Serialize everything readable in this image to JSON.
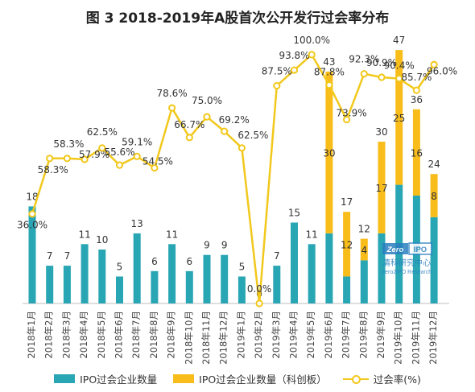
{
  "chart_data": {
    "type": "bar",
    "title": "图 3 2018-2019年A股首次公开发行过会率分布",
    "categories": [
      "2018年1月",
      "2018年2月",
      "2018年3月",
      "2018年4月",
      "2018年5月",
      "2018年6月",
      "2018年7月",
      "2018年8月",
      "2018年9月",
      "2018年10月",
      "2018年11月",
      "2018年12月",
      "2019年1月",
      "2019年2月",
      "2019年3月",
      "2019年4月",
      "2019年5月",
      "2019年6月",
      "2019年7月",
      "2019年8月",
      "2019年9月",
      "2019年10月",
      "2019年11月",
      "2019年12月"
    ],
    "series": [
      {
        "name": "IPO过会企业数量",
        "type": "bar",
        "stack": "ipo",
        "color": "#29a6b4",
        "values": [
          18,
          7,
          7,
          11,
          10,
          5,
          13,
          6,
          11,
          6,
          9,
          9,
          5,
          0,
          7,
          15,
          11,
          13,
          5,
          8,
          13,
          22,
          20,
          16
        ],
        "labels": [
          "18",
          "7",
          "7",
          "11",
          "10",
          "5",
          "13",
          "6",
          "11",
          "6",
          "9",
          "9",
          "5",
          "0",
          "7",
          "15",
          "11",
          "",
          "",
          "",
          "",
          "",
          "",
          ""
        ]
      },
      {
        "name": "IPO过会企业数量（科创板）",
        "type": "bar",
        "stack": "ipo",
        "color": "#f9bd1b",
        "values": [
          0,
          0,
          0,
          0,
          0,
          0,
          0,
          0,
          0,
          0,
          0,
          0,
          0,
          0,
          0,
          0,
          0,
          30,
          12,
          4,
          17,
          25,
          16,
          8
        ],
        "labels": [
          "",
          "",
          "",
          "",
          "",
          "",
          "",
          "",
          "",
          "",
          "",
          "",
          "",
          "",
          "",
          "",
          "",
          "30",
          "12",
          "4",
          "17",
          "25",
          "16",
          "8"
        ]
      },
      {
        "name": "过会率(%)",
        "type": "line",
        "color": "#f2c81c",
        "values": [
          36.0,
          58.3,
          58.3,
          57.9,
          62.5,
          55.6,
          59.1,
          54.5,
          78.6,
          66.7,
          75.0,
          69.2,
          62.5,
          0.0,
          87.5,
          93.8,
          100.0,
          87.8,
          73.9,
          92.3,
          90.9,
          90.4,
          85.7,
          96.0
        ],
        "labels": [
          "36.0%",
          "58.3%",
          "58.3%",
          "57.9%",
          "62.5%",
          "55.6%",
          "59.1%",
          "54.5%",
          "78.6%",
          "66.7%",
          "75.0%",
          "69.2%",
          "62.5%",
          "0.0%",
          "87.5%",
          "93.8%",
          "100.0%",
          "87.8%",
          "73.9%",
          "92.3%",
          "90.9%",
          "90.4%",
          "85.7%",
          "96.0%"
        ]
      }
    ],
    "totals": [
      "",
      "",
      "",
      "",
      "",
      "",
      "",
      "",
      "",
      "",
      "",
      "",
      "",
      "0",
      "",
      "",
      "",
      "43",
      "17",
      "12",
      "30",
      "47",
      "36",
      "24"
    ],
    "ylim_bar": [
      0,
      50
    ],
    "ylim_line": [
      0,
      110
    ],
    "legend_position": "bottom",
    "grid": false
  },
  "watermark": {
    "brand": "Zero",
    "brand2": "IPO",
    "cn": "清科研究中心",
    "en": "Zero2IPO Research"
  }
}
